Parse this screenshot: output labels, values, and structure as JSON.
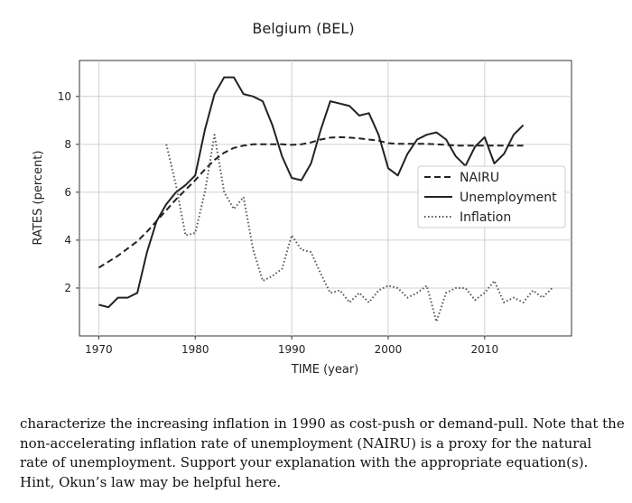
{
  "chart_data": {
    "type": "line",
    "title": "Belgium (BEL)",
    "xlabel": "TIME (year)",
    "ylabel": "RATES (percent)",
    "xlim": [
      1968,
      2019
    ],
    "ylim": [
      0,
      11.5
    ],
    "xticks": [
      1970,
      1980,
      1990,
      2000,
      2010
    ],
    "yticks": [
      2,
      4,
      6,
      8,
      10
    ],
    "grid": true,
    "legend_position": "right",
    "series": [
      {
        "name": "NAIRU",
        "style": "dashed",
        "x": [
          1970,
          1971,
          1972,
          1973,
          1974,
          1975,
          1976,
          1977,
          1978,
          1979,
          1980,
          1981,
          1982,
          1983,
          1984,
          1985,
          1986,
          1987,
          1988,
          1989,
          1990,
          1991,
          1992,
          1993,
          1994,
          1995,
          1996,
          1997,
          1998,
          1999,
          2000,
          2001,
          2002,
          2003,
          2004,
          2005,
          2006,
          2007,
          2008,
          2009,
          2010,
          2011,
          2012,
          2013,
          2014
        ],
        "y": [
          2.85,
          3.1,
          3.35,
          3.65,
          3.95,
          4.35,
          4.8,
          5.25,
          5.7,
          6.1,
          6.5,
          6.95,
          7.35,
          7.65,
          7.85,
          7.95,
          8.0,
          8.0,
          8.0,
          8.0,
          7.98,
          8.0,
          8.08,
          8.2,
          8.28,
          8.3,
          8.28,
          8.25,
          8.2,
          8.15,
          8.05,
          8.02,
          8.02,
          8.02,
          8.02,
          8.0,
          7.98,
          7.95,
          7.95,
          7.95,
          7.95,
          7.95,
          7.95,
          7.95,
          7.95
        ]
      },
      {
        "name": "Unemployment",
        "style": "solid",
        "x": [
          1970,
          1971,
          1972,
          1973,
          1974,
          1975,
          1976,
          1977,
          1978,
          1979,
          1980,
          1981,
          1982,
          1983,
          1984,
          1985,
          1986,
          1987,
          1988,
          1989,
          1990,
          1991,
          1992,
          1993,
          1994,
          1995,
          1996,
          1997,
          1998,
          1999,
          2000,
          2001,
          2002,
          2003,
          2004,
          2005,
          2006,
          2007,
          2008,
          2009,
          2010,
          2011,
          2012,
          2013,
          2014
        ],
        "y": [
          1.3,
          1.2,
          1.6,
          1.6,
          1.8,
          3.5,
          4.8,
          5.5,
          6.0,
          6.3,
          6.7,
          8.6,
          10.1,
          10.8,
          10.8,
          10.1,
          10.0,
          9.8,
          8.8,
          7.5,
          6.6,
          6.5,
          7.2,
          8.6,
          9.8,
          9.7,
          9.6,
          9.2,
          9.3,
          8.4,
          7.0,
          6.7,
          7.6,
          8.2,
          8.4,
          8.5,
          8.2,
          7.5,
          7.1,
          7.9,
          8.3,
          7.2,
          7.6,
          8.4,
          8.8
        ]
      },
      {
        "name": "Inflation",
        "style": "dotted",
        "x": [
          1977,
          1978,
          1979,
          1980,
          1981,
          1982,
          1983,
          1984,
          1985,
          1986,
          1987,
          1988,
          1989,
          1990,
          1991,
          1992,
          1993,
          1994,
          1995,
          1996,
          1997,
          1998,
          1999,
          2000,
          2001,
          2002,
          2003,
          2004,
          2005,
          2006,
          2007,
          2008,
          2009,
          2010,
          2011,
          2012,
          2013,
          2014,
          2015,
          2016,
          2017
        ],
        "y": [
          8.0,
          6.3,
          4.2,
          4.3,
          6.0,
          8.4,
          6.0,
          5.3,
          5.8,
          3.6,
          2.3,
          2.5,
          2.8,
          4.2,
          3.6,
          3.5,
          2.6,
          1.8,
          1.9,
          1.4,
          1.8,
          1.4,
          1.9,
          2.1,
          2.0,
          1.6,
          1.8,
          2.1,
          0.6,
          1.8,
          2.0,
          2.0,
          1.5,
          1.8,
          2.3,
          1.4,
          1.6,
          1.4,
          1.9,
          1.6,
          2.0
        ]
      }
    ]
  },
  "caption": {
    "lines": [
      "characterize the increasing inflation in 1990 as cost-push or demand-pull. Note that the",
      "non-accelerating inflation rate of unemployment (NAIRU) is a proxy for the natural",
      "rate of unemployment. Support your explanation with the appropriate equation(s).",
      "Hint, Okun’s law may be helpful here."
    ]
  }
}
